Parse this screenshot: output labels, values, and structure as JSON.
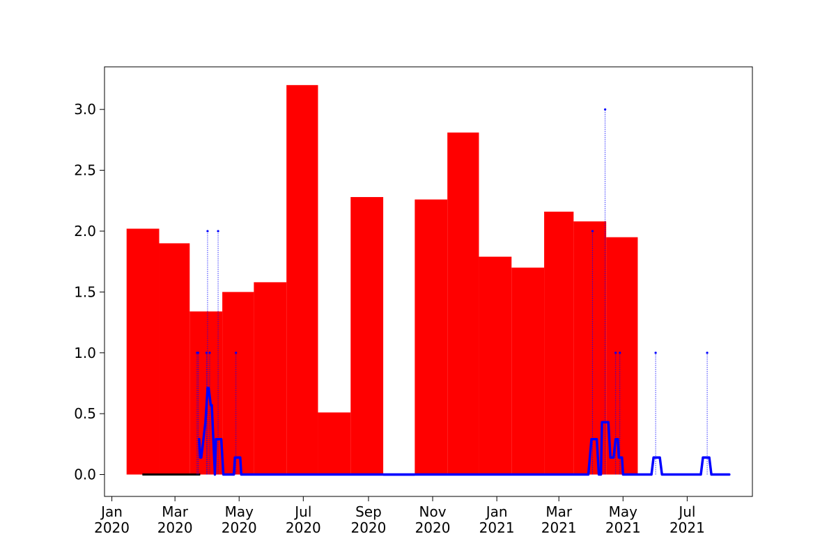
{
  "chart_data": {
    "type": "bar",
    "title": "",
    "xlabel": "",
    "ylabel": "",
    "xlim": [
      "2019-12-25",
      "2021-09-01"
    ],
    "ylim": [
      -0.18,
      3.35
    ],
    "grid": false,
    "x_ticks": [
      {
        "date": "2020-01-01",
        "label": [
          "Jan",
          "2020"
        ]
      },
      {
        "date": "2020-03-01",
        "label": [
          "Mar",
          "2020"
        ]
      },
      {
        "date": "2020-05-01",
        "label": [
          "May",
          "2020"
        ]
      },
      {
        "date": "2020-07-01",
        "label": [
          "Jul",
          "2020"
        ]
      },
      {
        "date": "2020-09-01",
        "label": [
          "Sep",
          "2020"
        ]
      },
      {
        "date": "2020-11-01",
        "label": [
          "Nov",
          "2020"
        ]
      },
      {
        "date": "2021-01-01",
        "label": [
          "Jan",
          "2021"
        ]
      },
      {
        "date": "2021-03-01",
        "label": [
          "Mar",
          "2021"
        ]
      },
      {
        "date": "2021-05-01",
        "label": [
          "May",
          "2021"
        ]
      },
      {
        "date": "2021-07-01",
        "label": [
          "Jul",
          "2021"
        ]
      }
    ],
    "y_ticks": [
      {
        "value": 0.0,
        "label": "0.0"
      },
      {
        "value": 0.5,
        "label": "0.5"
      },
      {
        "value": 1.0,
        "label": "1.0"
      },
      {
        "value": 1.5,
        "label": "1.5"
      },
      {
        "value": 2.0,
        "label": "2.0"
      },
      {
        "value": 2.5,
        "label": "2.5"
      },
      {
        "value": 3.0,
        "label": "3.0"
      }
    ],
    "bars": {
      "color": "#ff0000",
      "data": [
        {
          "start": "2020-01-15",
          "end": "2020-02-15",
          "value": 2.02
        },
        {
          "start": "2020-02-15",
          "end": "2020-03-15",
          "value": 1.9
        },
        {
          "start": "2020-03-15",
          "end": "2020-04-15",
          "value": 1.34
        },
        {
          "start": "2020-04-15",
          "end": "2020-05-15",
          "value": 1.5
        },
        {
          "start": "2020-05-15",
          "end": "2020-06-15",
          "value": 1.58
        },
        {
          "start": "2020-06-15",
          "end": "2020-07-15",
          "value": 3.2
        },
        {
          "start": "2020-07-15",
          "end": "2020-08-15",
          "value": 0.51
        },
        {
          "start": "2020-08-15",
          "end": "2020-09-15",
          "value": 2.28
        },
        {
          "start": "2020-09-15",
          "end": "2020-10-15",
          "value": -0.01
        },
        {
          "start": "2020-10-15",
          "end": "2020-11-15",
          "value": 2.26
        },
        {
          "start": "2020-11-15",
          "end": "2020-12-15",
          "value": 2.81
        },
        {
          "start": "2020-12-15",
          "end": "2021-01-15",
          "value": 1.79
        },
        {
          "start": "2021-01-15",
          "end": "2021-02-15",
          "value": 1.7
        },
        {
          "start": "2021-02-15",
          "end": "2021-03-15",
          "value": 2.16
        },
        {
          "start": "2021-03-15",
          "end": "2021-04-15",
          "value": 2.08
        },
        {
          "start": "2021-04-15",
          "end": "2021-05-15",
          "value": 1.95
        }
      ]
    },
    "black_line": {
      "color": "#000000",
      "points": [
        [
          "2020-01-30",
          0.0
        ],
        [
          "2020-03-25",
          0.0
        ]
      ]
    },
    "events": {
      "color": "#0000ff",
      "points": [
        [
          "2020-03-22",
          1
        ],
        [
          "2020-03-23",
          1
        ],
        [
          "2020-03-31",
          1
        ],
        [
          "2020-04-01",
          2
        ],
        [
          "2020-04-03",
          1
        ],
        [
          "2020-04-11",
          2
        ],
        [
          "2020-04-28",
          1
        ],
        [
          "2021-04-02",
          2
        ],
        [
          "2021-04-14",
          3
        ],
        [
          "2021-04-24",
          1
        ],
        [
          "2021-04-28",
          1
        ],
        [
          "2021-06-01",
          1
        ],
        [
          "2021-07-20",
          1
        ]
      ]
    },
    "rolling_line": {
      "color": "#0000ff",
      "points": [
        [
          "2020-03-24",
          0.29
        ],
        [
          "2020-03-25",
          0.14
        ],
        [
          "2020-03-26",
          0.14
        ],
        [
          "2020-03-30",
          0.43
        ],
        [
          "2020-04-01",
          0.71
        ],
        [
          "2020-04-02",
          0.71
        ],
        [
          "2020-04-04",
          0.57
        ],
        [
          "2020-04-05",
          0.57
        ],
        [
          "2020-04-08",
          0.0
        ],
        [
          "2020-04-09",
          0.29
        ],
        [
          "2020-04-14",
          0.29
        ],
        [
          "2020-04-16",
          0.0
        ],
        [
          "2020-04-26",
          0.0
        ],
        [
          "2020-04-27",
          0.14
        ],
        [
          "2020-05-02",
          0.14
        ],
        [
          "2020-05-03",
          0.0
        ],
        [
          "2021-03-29",
          0.0
        ],
        [
          "2021-04-01",
          0.29
        ],
        [
          "2021-04-06",
          0.29
        ],
        [
          "2021-04-08",
          0.0
        ],
        [
          "2021-04-10",
          0.0
        ],
        [
          "2021-04-11",
          0.43
        ],
        [
          "2021-04-17",
          0.43
        ],
        [
          "2021-04-19",
          0.14
        ],
        [
          "2021-04-22",
          0.14
        ],
        [
          "2021-04-24",
          0.29
        ],
        [
          "2021-04-26",
          0.29
        ],
        [
          "2021-04-27",
          0.14
        ],
        [
          "2021-04-30",
          0.14
        ],
        [
          "2021-05-01",
          0.0
        ],
        [
          "2021-05-28",
          0.0
        ],
        [
          "2021-05-30",
          0.14
        ],
        [
          "2021-06-05",
          0.14
        ],
        [
          "2021-06-07",
          0.0
        ],
        [
          "2021-07-14",
          0.0
        ],
        [
          "2021-07-16",
          0.14
        ],
        [
          "2021-07-22",
          0.14
        ],
        [
          "2021-07-24",
          0.0
        ],
        [
          "2021-08-10",
          0.0
        ]
      ]
    }
  }
}
